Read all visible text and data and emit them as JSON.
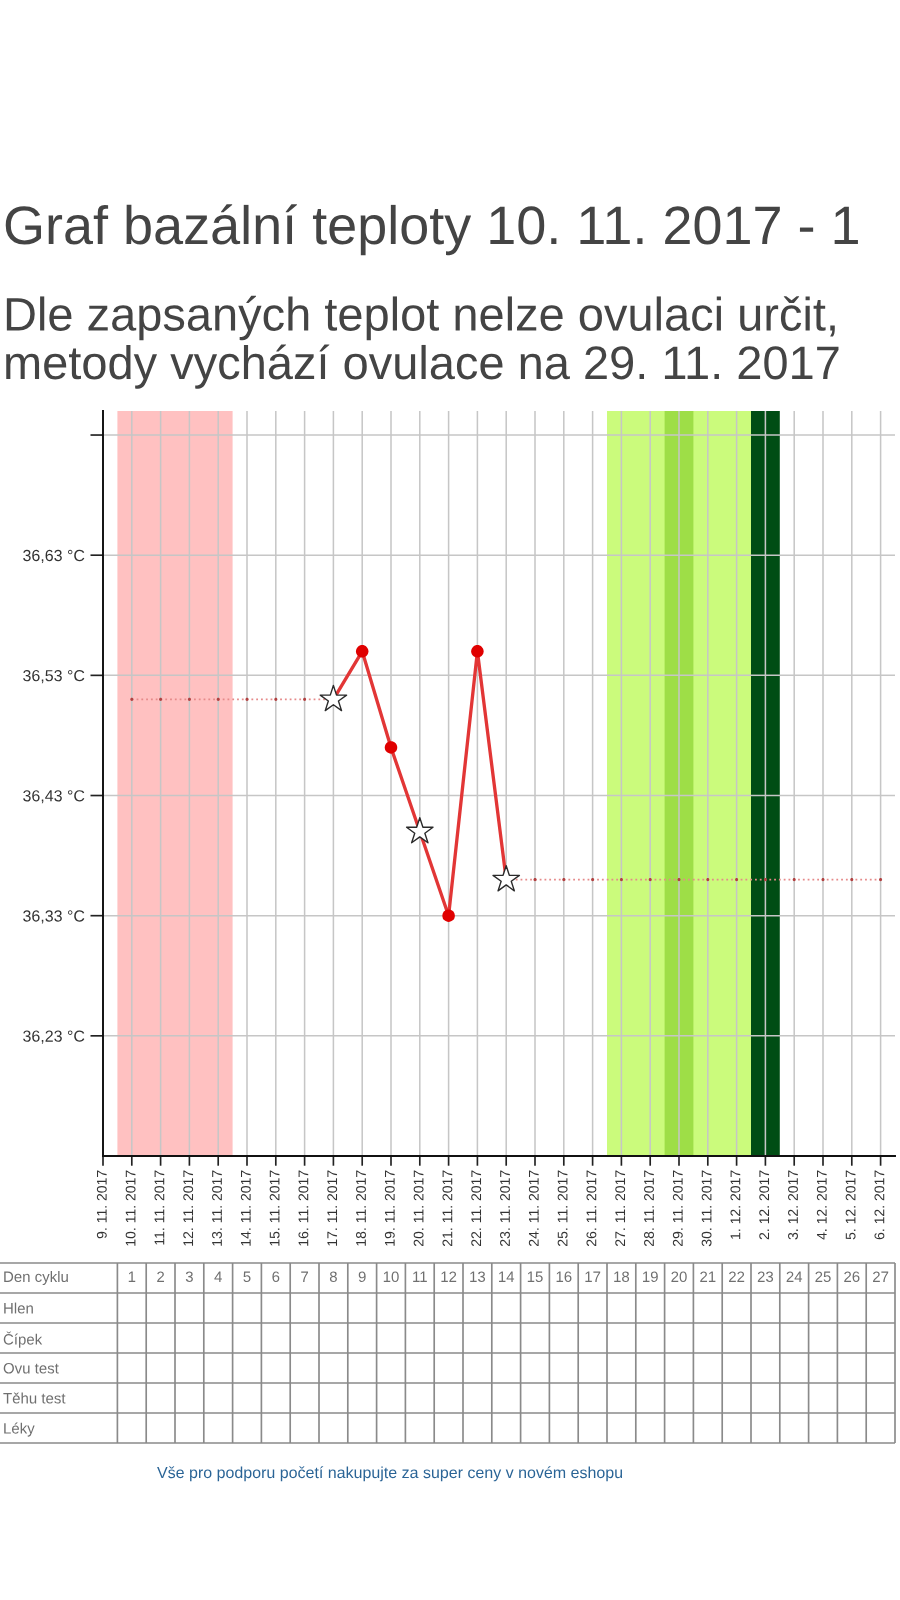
{
  "chart_data": [
    {
      "type": "line",
      "title": "Graf bazální teploty 10. 11. 2017 - 1",
      "subtitle": "Dle zapsaných teplot nelze ovulaci určit,\nmetody vychází ovulace na 29. 11. 2017",
      "categories": [
        "9. 11. 2017",
        "10. 11. 2017",
        "11. 11. 2017",
        "12. 11. 2017",
        "13. 11. 2017",
        "14. 11. 2017",
        "15. 11. 2017",
        "16. 11. 2017",
        "17. 11. 2017",
        "18. 11. 2017",
        "19. 11. 2017",
        "20. 11. 2017",
        "21. 11. 2017",
        "22. 11. 2017",
        "23. 11. 2017",
        "24. 11. 2017",
        "25. 11. 2017",
        "26. 11. 2017",
        "27. 11. 2017",
        "28. 11. 2017",
        "29. 11. 2017",
        "30. 11. 2017",
        "1. 12. 2017",
        "2. 12. 2017",
        "3. 12. 2017",
        "4. 12. 2017",
        "5. 12. 2017",
        "6. 12. 2017"
      ],
      "series": [
        {
          "type": "line",
          "color": "#e58a8a",
          "line_style": "dotted",
          "marker": "circle",
          "values": [
            null,
            36.51,
            36.51,
            36.51,
            36.51,
            36.51,
            36.51,
            36.51,
            36.51,
            null,
            null,
            null,
            null,
            null,
            36.36,
            36.36,
            36.36,
            36.36,
            36.36,
            36.36,
            36.36,
            36.36,
            36.36,
            36.36,
            36.36,
            36.36,
            36.36,
            36.36
          ]
        },
        {
          "type": "line",
          "color": "#e23636",
          "line_style": "solid",
          "marker": "none",
          "values": [
            null,
            null,
            null,
            null,
            null,
            null,
            null,
            null,
            36.51,
            36.55,
            36.47,
            36.4,
            36.33,
            36.55,
            36.36,
            null,
            null,
            null,
            null,
            null,
            null,
            null,
            null,
            null,
            null,
            null,
            null,
            null
          ]
        },
        {
          "type": "scatter",
          "color": "#e00000",
          "marker": "circle",
          "values": [
            null,
            null,
            null,
            null,
            null,
            null,
            null,
            null,
            null,
            36.55,
            36.47,
            null,
            36.33,
            36.55,
            null,
            null,
            null,
            null,
            null,
            null,
            null,
            null,
            null,
            null,
            null,
            null,
            null,
            null
          ]
        },
        {
          "type": "scatter",
          "color": "#ffffff",
          "marker": "star",
          "values": [
            null,
            null,
            null,
            null,
            null,
            null,
            null,
            null,
            36.51,
            null,
            null,
            36.4,
            null,
            null,
            36.36,
            null,
            null,
            null,
            null,
            null,
            null,
            null,
            null,
            null,
            null,
            null,
            null,
            null
          ]
        }
      ],
      "ylim": [
        36.13,
        36.75
      ],
      "yticks": [
        {
          "value": 36.23,
          "label": "36,23 °C"
        },
        {
          "value": 36.33,
          "label": "36,33 °C"
        },
        {
          "value": 36.43,
          "label": "36,43 °C"
        },
        {
          "value": 36.53,
          "label": "36,53 °C"
        },
        {
          "value": 36.63,
          "label": "36,63 °C"
        },
        {
          "value": 36.73,
          "label": null
        }
      ],
      "grid": true,
      "bands": [
        {
          "axis": "x",
          "from": "10. 11. 2017",
          "to": "13. 11. 2017",
          "color": "#ffc1c1"
        },
        {
          "axis": "x",
          "from": "27. 11. 2017",
          "to": "1. 12. 2017",
          "color": "#cbfb7c"
        },
        {
          "axis": "x",
          "from": "29. 11. 2017",
          "to": "29. 11. 2017",
          "color": "#9ede47"
        },
        {
          "axis": "x",
          "from": "2. 12. 2017",
          "to": "2. 12. 2017",
          "color": "#004d14"
        }
      ]
    },
    {
      "type": "heatmap",
      "xlabel": "Den cyklu",
      "categories": [
        "1",
        "2",
        "3",
        "4",
        "5",
        "6",
        "7",
        "8",
        "9",
        "10",
        "11",
        "12",
        "13",
        "14",
        "15",
        "16",
        "17",
        "18",
        "19",
        "20",
        "21",
        "22",
        "23",
        "24",
        "25",
        "26",
        "27"
      ],
      "y_categories": [
        "Hlen",
        "Čípek",
        "Ovu test",
        "Těhu test",
        "Léky"
      ],
      "cells": [
        [
          null,
          null,
          null,
          null,
          null,
          null,
          null,
          null,
          null,
          null,
          null,
          null,
          null,
          null,
          null,
          null,
          null,
          null,
          null,
          null,
          null,
          null,
          null,
          null,
          null,
          null,
          null
        ],
        [
          null,
          null,
          null,
          null,
          null,
          null,
          null,
          null,
          null,
          null,
          null,
          null,
          null,
          null,
          null,
          null,
          null,
          null,
          null,
          null,
          null,
          null,
          null,
          null,
          null,
          null,
          null
        ],
        [
          null,
          null,
          null,
          null,
          null,
          null,
          null,
          null,
          null,
          null,
          null,
          null,
          null,
          null,
          null,
          null,
          null,
          null,
          null,
          null,
          null,
          null,
          null,
          null,
          null,
          null,
          null
        ],
        [
          null,
          null,
          null,
          null,
          null,
          null,
          null,
          null,
          null,
          null,
          null,
          null,
          null,
          null,
          null,
          null,
          null,
          null,
          null,
          null,
          null,
          null,
          null,
          null,
          null,
          null,
          null
        ],
        [
          null,
          null,
          null,
          null,
          null,
          null,
          null,
          null,
          null,
          null,
          null,
          null,
          null,
          null,
          null,
          null,
          null,
          null,
          null,
          null,
          null,
          null,
          null,
          null,
          null,
          null,
          null
        ]
      ],
      "annotations": [
        "Vše pro podporu početí nakupujte za super ceny v novém eshopu"
      ]
    }
  ]
}
